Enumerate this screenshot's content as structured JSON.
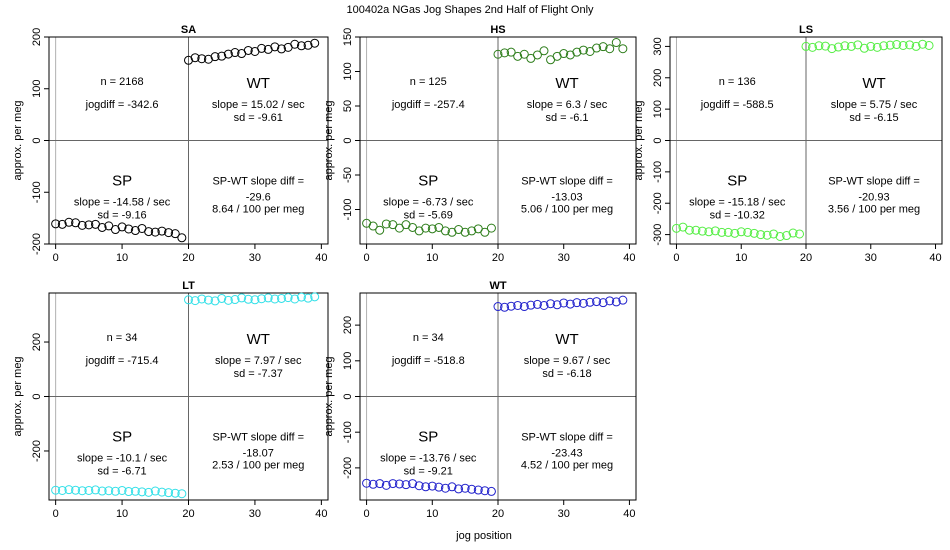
{
  "figure": {
    "title": "100402a   NGas Jog Shapes 2nd Half of Flight Only",
    "xlabel": "jog position",
    "ylabel": "approx. per meg"
  },
  "chart_data": [
    {
      "type": "scatter",
      "title": "SA",
      "color": "#000000",
      "xlim": [
        -1,
        41
      ],
      "ylim": [
        -200,
        200
      ],
      "xticks": [
        0,
        10,
        20,
        30,
        40
      ],
      "yticks": [
        -200,
        -100,
        0,
        100,
        200
      ],
      "x": [
        0,
        1,
        2,
        3,
        4,
        5,
        6,
        7,
        8,
        9,
        10,
        11,
        12,
        13,
        14,
        15,
        16,
        17,
        18,
        19,
        20,
        21,
        22,
        23,
        24,
        25,
        26,
        27,
        28,
        29,
        30,
        31,
        32,
        33,
        34,
        35,
        36,
        37,
        38,
        39
      ],
      "y": [
        -161,
        -162,
        -158,
        -159,
        -164,
        -163,
        -162,
        -168,
        -165,
        -172,
        -167,
        -171,
        -174,
        -170,
        -176,
        -177,
        -175,
        -178,
        -180,
        -188,
        155,
        160,
        158,
        157,
        162,
        163,
        167,
        170,
        168,
        174,
        172,
        178,
        176,
        181,
        177,
        180,
        186,
        183,
        184,
        188
      ],
      "annotations": {
        "n": "n = 2168",
        "jogdiff": "jogdiff = -342.6",
        "wt_label": "WT",
        "wt_slope": "slope = 15.02 / sec",
        "wt_sd": "sd = -9.61",
        "sp_label": "SP",
        "sp_slope": "slope = -14.58 / sec",
        "sp_sd": "sd = -9.16",
        "diff_label": "SP-WT slope diff =",
        "diff_value": "-29.6",
        "diff_rate": "8.64 / 100 per meg"
      }
    },
    {
      "type": "scatter",
      "title": "HS",
      "color": "#2d7d1a",
      "xlim": [
        -1,
        41
      ],
      "ylim": [
        -150,
        150
      ],
      "xticks": [
        0,
        10,
        20,
        30,
        40
      ],
      "yticks": [
        -100,
        -50,
        0,
        50,
        100,
        150
      ],
      "x": [
        0,
        1,
        2,
        3,
        4,
        5,
        6,
        7,
        8,
        9,
        10,
        11,
        12,
        13,
        14,
        15,
        16,
        17,
        18,
        19,
        20,
        21,
        22,
        23,
        24,
        25,
        26,
        27,
        28,
        29,
        30,
        31,
        32,
        33,
        34,
        35,
        36,
        37,
        38,
        39
      ],
      "y": [
        -120,
        -124,
        -130,
        -121,
        -122,
        -127,
        -122,
        -126,
        -131,
        -127,
        -128,
        -126,
        -131,
        -133,
        -129,
        -133,
        -131,
        -128,
        -133,
        -127,
        125,
        127,
        128,
        122,
        125,
        119,
        124,
        130,
        117,
        122,
        126,
        124,
        128,
        131,
        129,
        134,
        136,
        133,
        142,
        133
      ],
      "annotations": {
        "n": "n = 125",
        "jogdiff": "jogdiff = -257.4",
        "wt_label": "WT",
        "wt_slope": "slope = 6.3 / sec",
        "wt_sd": "sd = -6.1",
        "sp_label": "SP",
        "sp_slope": "slope = -6.73 / sec",
        "sp_sd": "sd = -5.69",
        "diff_label": "SP-WT slope diff =",
        "diff_value": "-13.03",
        "diff_rate": "5.06 / 100 per meg"
      }
    },
    {
      "type": "scatter",
      "title": "LS",
      "color": "#55ee44",
      "xlim": [
        -1,
        41
      ],
      "ylim": [
        -330,
        330
      ],
      "xticks": [
        0,
        10,
        20,
        30,
        40
      ],
      "yticks": [
        -300,
        -200,
        -100,
        0,
        100,
        200,
        300
      ],
      "x": [
        0,
        1,
        2,
        3,
        4,
        5,
        6,
        7,
        8,
        9,
        10,
        11,
        12,
        13,
        14,
        15,
        16,
        17,
        18,
        19,
        20,
        21,
        22,
        23,
        24,
        25,
        26,
        27,
        28,
        29,
        30,
        31,
        32,
        33,
        34,
        35,
        36,
        37,
        38,
        39
      ],
      "y": [
        -280,
        -276,
        -286,
        -286,
        -289,
        -291,
        -288,
        -293,
        -293,
        -296,
        -291,
        -293,
        -296,
        -300,
        -302,
        -298,
        -306,
        -303,
        -295,
        -298,
        300,
        297,
        302,
        301,
        293,
        298,
        302,
        300,
        305,
        294,
        300,
        297,
        302,
        304,
        306,
        303,
        305,
        300,
        307,
        303
      ],
      "annotations": {
        "n": "n = 136",
        "jogdiff": "jogdiff = -588.5",
        "wt_label": "WT",
        "wt_slope": "slope = 5.75 / sec",
        "wt_sd": "sd = -6.15",
        "sp_label": "SP",
        "sp_slope": "slope = -15.18 / sec",
        "sp_sd": "sd = -10.32",
        "diff_label": "SP-WT slope diff =",
        "diff_value": "-20.93",
        "diff_rate": "3.56 / 100 per meg"
      }
    },
    {
      "type": "scatter",
      "title": "LT",
      "color": "#33e0e8",
      "xlim": [
        -1,
        41
      ],
      "ylim": [
        -380,
        380
      ],
      "xticks": [
        0,
        10,
        20,
        30,
        40
      ],
      "yticks": [
        -200,
        0,
        200
      ],
      "x": [
        0,
        1,
        2,
        3,
        4,
        5,
        6,
        7,
        8,
        9,
        10,
        11,
        12,
        13,
        14,
        15,
        16,
        17,
        18,
        19,
        20,
        21,
        22,
        23,
        24,
        25,
        26,
        27,
        28,
        29,
        30,
        31,
        32,
        33,
        34,
        35,
        36,
        37,
        38,
        39
      ],
      "y": [
        -344,
        -345,
        -342,
        -344,
        -346,
        -345,
        -343,
        -347,
        -346,
        -348,
        -345,
        -349,
        -348,
        -350,
        -352,
        -347,
        -351,
        -353,
        -355,
        -357,
        355,
        352,
        358,
        354,
        351,
        360,
        353,
        356,
        362,
        357,
        355,
        359,
        362,
        358,
        360,
        363,
        358,
        365,
        361,
        366
      ],
      "annotations": {
        "n": "n = 34",
        "jogdiff": "jogdiff = -715.4",
        "wt_label": "WT",
        "wt_slope": "slope = 7.97 / sec",
        "wt_sd": "sd = -7.37",
        "sp_label": "SP",
        "sp_slope": "slope = -10.1 / sec",
        "sp_sd": "sd = -6.71",
        "diff_label": "SP-WT slope diff =",
        "diff_value": "-18.07",
        "diff_rate": "2.53 / 100 per meg"
      }
    },
    {
      "type": "scatter",
      "title": "WT",
      "color": "#2222cc",
      "xlim": [
        -1,
        41
      ],
      "ylim": [
        -290,
        290
      ],
      "xticks": [
        0,
        10,
        20,
        30,
        40
      ],
      "yticks": [
        -200,
        -100,
        0,
        100,
        200
      ],
      "x": [
        0,
        1,
        2,
        3,
        4,
        5,
        6,
        7,
        8,
        9,
        10,
        11,
        12,
        13,
        14,
        15,
        16,
        17,
        18,
        19,
        20,
        21,
        22,
        23,
        24,
        25,
        26,
        27,
        28,
        29,
        30,
        31,
        32,
        33,
        34,
        35,
        36,
        37,
        38,
        39
      ],
      "y": [
        -243,
        -246,
        -244,
        -249,
        -244,
        -245,
        -247,
        -244,
        -250,
        -253,
        -251,
        -254,
        -257,
        -253,
        -259,
        -257,
        -260,
        -262,
        -264,
        -266,
        252,
        250,
        253,
        255,
        252,
        256,
        258,
        255,
        260,
        257,
        262,
        259,
        263,
        261,
        264,
        266,
        263,
        268,
        265,
        270
      ],
      "annotations": {
        "n": "n = 34",
        "jogdiff": "jogdiff = -518.8",
        "wt_label": "WT",
        "wt_slope": "slope = 9.67 / sec",
        "wt_sd": "sd = -6.18",
        "sp_label": "SP",
        "sp_slope": "slope = -13.76 / sec",
        "sp_sd": "sd = -9.21",
        "diff_label": "SP-WT slope diff =",
        "diff_value": "-23.43",
        "diff_rate": "4.52 / 100 per meg"
      }
    }
  ]
}
